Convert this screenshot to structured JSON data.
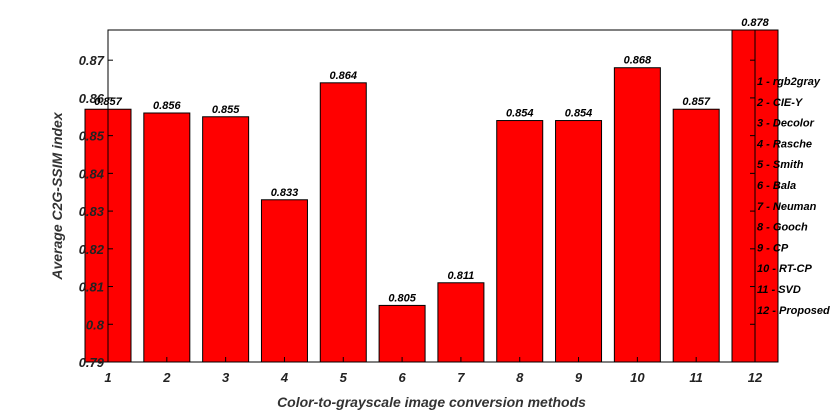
{
  "chart_data": {
    "type": "bar",
    "title": "",
    "xlabel": "Color-to-grayscale image conversion methods",
    "ylabel": "Average C2G-SSIM index",
    "categories": [
      "1",
      "2",
      "3",
      "4",
      "5",
      "6",
      "7",
      "8",
      "9",
      "10",
      "11",
      "12"
    ],
    "values": [
      0.857,
      0.856,
      0.855,
      0.833,
      0.864,
      0.805,
      0.811,
      0.854,
      0.854,
      0.868,
      0.857,
      0.878
    ],
    "data_labels": [
      "0.857",
      "0.856",
      "0.855",
      "0.833",
      "0.864",
      "0.805",
      "0.811",
      "0.854",
      "0.854",
      "0.868",
      "0.857",
      "0.878"
    ],
    "ylim": [
      0.79,
      0.878
    ],
    "yticks": [
      0.79,
      0.8,
      0.81,
      0.82,
      0.83,
      0.84,
      0.85,
      0.86,
      0.87
    ],
    "ytick_labels": [
      "0.79",
      "0.8",
      "0.81",
      "0.82",
      "0.83",
      "0.84",
      "0.85",
      "0.86",
      "0.87"
    ],
    "bar_color": "#ff0000",
    "legend": [
      "1 - rgb2gray",
      "2 - CIE-Y",
      "3 - Decolor",
      "4 - Rasche",
      "5 - Smith",
      "6 - Bala",
      "7 - Neuman",
      "8 - Gooch",
      "9 - CP",
      "10 - RT-CP",
      "11 - SVD",
      "12 - Proposed"
    ],
    "legend_placement": "right",
    "grid": false
  }
}
